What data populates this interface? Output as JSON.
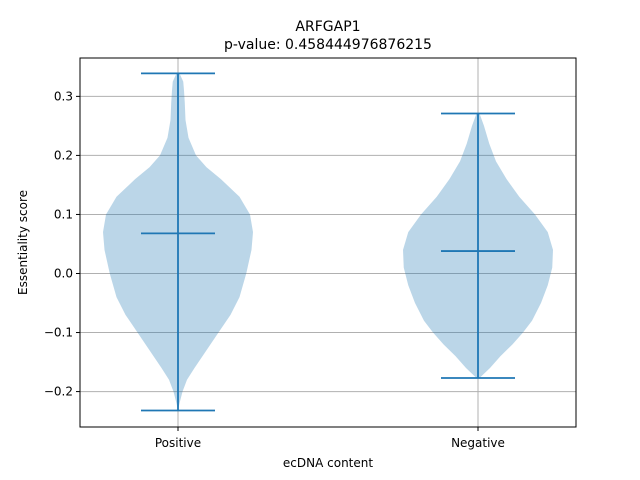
{
  "chart_data": {
    "type": "violin",
    "title": "ARFGAP1",
    "subtitle": "p-value: 0.458444976876215",
    "xlabel": "ecDNA content",
    "ylabel": "Essentiality score",
    "categories": [
      "Positive",
      "Negative"
    ],
    "ylim": [
      -0.26,
      0.365
    ],
    "yticks": [
      -0.2,
      -0.1,
      0.0,
      0.1,
      0.2,
      0.3
    ],
    "ytick_labels": [
      "−0.2",
      "−0.1",
      "0.0",
      "0.1",
      "0.2",
      "0.3"
    ],
    "grid": true,
    "series": [
      {
        "category": "Positive",
        "min": -0.232,
        "max": 0.339,
        "median": 0.068,
        "density_profile": [
          [
            -0.232,
            0.0
          ],
          [
            -0.22,
            0.02
          ],
          [
            -0.2,
            0.06
          ],
          [
            -0.18,
            0.12
          ],
          [
            -0.16,
            0.22
          ],
          [
            -0.13,
            0.38
          ],
          [
            -0.1,
            0.54
          ],
          [
            -0.07,
            0.7
          ],
          [
            -0.04,
            0.82
          ],
          [
            0.0,
            0.91
          ],
          [
            0.04,
            0.98
          ],
          [
            0.07,
            1.0
          ],
          [
            0.1,
            0.96
          ],
          [
            0.13,
            0.82
          ],
          [
            0.16,
            0.57
          ],
          [
            0.18,
            0.38
          ],
          [
            0.2,
            0.24
          ],
          [
            0.23,
            0.14
          ],
          [
            0.26,
            0.1
          ],
          [
            0.29,
            0.09
          ],
          [
            0.31,
            0.08
          ],
          [
            0.325,
            0.07
          ],
          [
            0.339,
            0.02
          ]
        ]
      },
      {
        "category": "Negative",
        "min": -0.177,
        "max": 0.271,
        "median": 0.038,
        "density_profile": [
          [
            -0.177,
            0.02
          ],
          [
            -0.16,
            0.16
          ],
          [
            -0.14,
            0.3
          ],
          [
            -0.12,
            0.46
          ],
          [
            -0.1,
            0.6
          ],
          [
            -0.08,
            0.72
          ],
          [
            -0.05,
            0.84
          ],
          [
            -0.02,
            0.93
          ],
          [
            0.01,
            0.99
          ],
          [
            0.04,
            1.0
          ],
          [
            0.07,
            0.93
          ],
          [
            0.1,
            0.76
          ],
          [
            0.13,
            0.55
          ],
          [
            0.16,
            0.38
          ],
          [
            0.19,
            0.24
          ],
          [
            0.22,
            0.15
          ],
          [
            0.25,
            0.08
          ],
          [
            0.271,
            0.02
          ]
        ]
      }
    ],
    "colors": {
      "violin_fill": "#1f77b4",
      "line": "#1f77b4",
      "grid": "#b0b0b0",
      "axis": "#000000"
    }
  }
}
